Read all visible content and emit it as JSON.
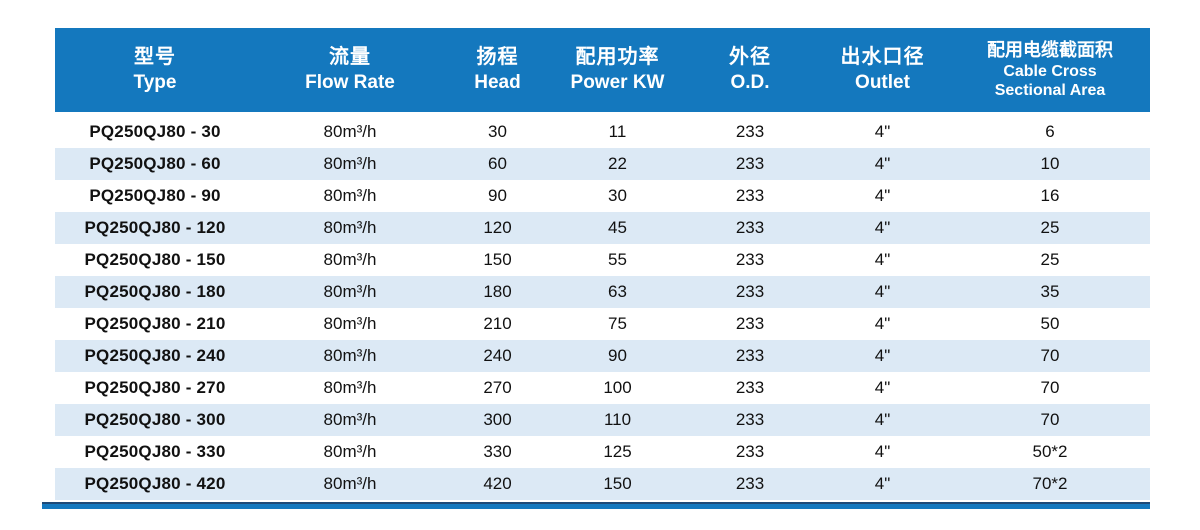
{
  "header": {
    "columns": [
      {
        "zh": "型号",
        "en1": "Type",
        "en2": ""
      },
      {
        "zh": "流量",
        "en1": "Flow Rate",
        "en2": ""
      },
      {
        "zh": "扬程",
        "en1": "Head",
        "en2": ""
      },
      {
        "zh": "配用功率",
        "en1": "Power KW",
        "en2": ""
      },
      {
        "zh": "外径",
        "en1": "O.D.",
        "en2": ""
      },
      {
        "zh": "出水口径",
        "en1": "Outlet",
        "en2": ""
      },
      {
        "zh": "配用电缆截面积",
        "en1": "Cable Cross",
        "en2": "Sectional Area"
      }
    ]
  },
  "table": {
    "rows": [
      {
        "type": "PQ250QJ80 - 30",
        "flow": "80m³/h",
        "head": "30",
        "power": "11",
        "od": "233",
        "outlet": "4\"",
        "cable": "6"
      },
      {
        "type": "PQ250QJ80 - 60",
        "flow": "80m³/h",
        "head": "60",
        "power": "22",
        "od": "233",
        "outlet": "4\"",
        "cable": "10"
      },
      {
        "type": "PQ250QJ80 - 90",
        "flow": "80m³/h",
        "head": "90",
        "power": "30",
        "od": "233",
        "outlet": "4\"",
        "cable": "16"
      },
      {
        "type": "PQ250QJ80 - 120",
        "flow": "80m³/h",
        "head": "120",
        "power": "45",
        "od": "233",
        "outlet": "4\"",
        "cable": "25"
      },
      {
        "type": "PQ250QJ80 - 150",
        "flow": "80m³/h",
        "head": "150",
        "power": "55",
        "od": "233",
        "outlet": "4\"",
        "cable": "25"
      },
      {
        "type": "PQ250QJ80 - 180",
        "flow": "80m³/h",
        "head": "180",
        "power": "63",
        "od": "233",
        "outlet": "4\"",
        "cable": "35"
      },
      {
        "type": "PQ250QJ80 - 210",
        "flow": "80m³/h",
        "head": "210",
        "power": "75",
        "od": "233",
        "outlet": "4\"",
        "cable": "50"
      },
      {
        "type": "PQ250QJ80 - 240",
        "flow": "80m³/h",
        "head": "240",
        "power": "90",
        "od": "233",
        "outlet": "4\"",
        "cable": "70"
      },
      {
        "type": "PQ250QJ80 - 270",
        "flow": "80m³/h",
        "head": "270",
        "power": "100",
        "od": "233",
        "outlet": "4\"",
        "cable": "70"
      },
      {
        "type": "PQ250QJ80 - 300",
        "flow": "80m³/h",
        "head": "300",
        "power": "110",
        "od": "233",
        "outlet": "4\"",
        "cable": "70"
      },
      {
        "type": "PQ250QJ80 - 330",
        "flow": "80m³/h",
        "head": "330",
        "power": "125",
        "od": "233",
        "outlet": "4\"",
        "cable": "50*2"
      },
      {
        "type": "PQ250QJ80 - 420",
        "flow": "80m³/h",
        "head": "420",
        "power": "150",
        "od": "233",
        "outlet": "4\"",
        "cable": "70*2"
      }
    ]
  },
  "colors": {
    "header_bg": "#1478be",
    "row_alt_bg": "#dce9f5",
    "accent_bar_blue": "#1478be",
    "accent_bar_dark_line": "#1d4a78",
    "body_text": "#111111"
  }
}
